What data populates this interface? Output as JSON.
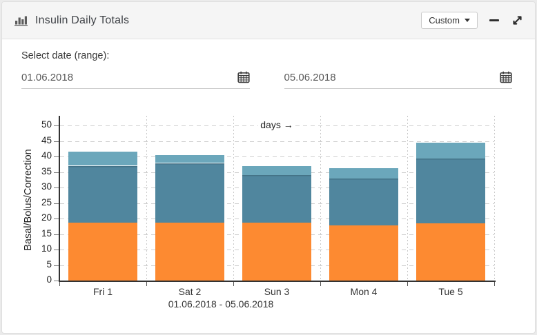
{
  "window": {
    "header": {
      "title": "Insulin Daily Totals",
      "range_selector": {
        "label": "Custom"
      }
    },
    "filters": {
      "label": "Select date (range):",
      "date_start": "01.06.2018",
      "date_end": "05.06.2018"
    }
  },
  "chart_data": {
    "type": "bar",
    "stacked": true,
    "categories": [
      "Fri 1",
      "Sat 2",
      "Sun 3",
      "Mon 4",
      "Tue 5"
    ],
    "series": [
      {
        "name": "Basal",
        "color": "#fd8a31",
        "values": [
          18.7,
          18.7,
          18.7,
          17.8,
          18.4
        ]
      },
      {
        "name": "Bolus",
        "color": "#50869e",
        "values": [
          18.3,
          19.2,
          15.4,
          15.1,
          21.0
        ]
      },
      {
        "name": "Correction",
        "color": "#6ba7bb",
        "values": [
          4.6,
          2.5,
          2.8,
          3.3,
          5.0
        ]
      }
    ],
    "stack_totals": [
      41.6,
      40.4,
      36.9,
      36.2,
      44.4
    ],
    "ylabel": "Basal/Bolus/Correction",
    "xlabel": "01.06.2018 - 05.06.2018",
    "annotation": "days →",
    "ylim": [
      0,
      50
    ],
    "ytick_step": 5,
    "grid": "dashed",
    "legend": "none"
  }
}
